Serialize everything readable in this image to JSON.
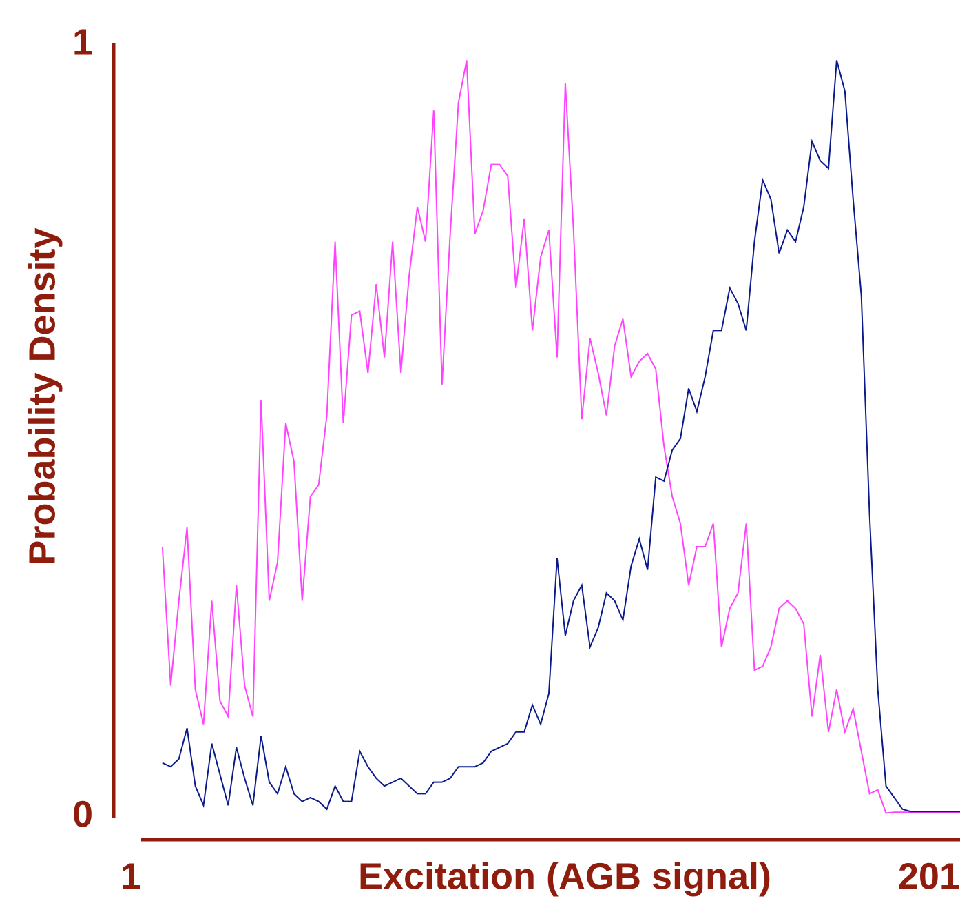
{
  "chart_data": {
    "type": "line",
    "xlabel": "Excitation (AGB signal)",
    "ylabel": "Probability Density",
    "xlim": [
      1,
      201
    ],
    "xticks": [
      1,
      201
    ],
    "ylim": [
      0,
      1
    ],
    "yticks": [
      0,
      1
    ],
    "grid": false,
    "x": [
      7,
      9,
      11,
      13,
      15,
      17,
      19,
      21,
      23,
      25,
      27,
      29,
      31,
      33,
      35,
      37,
      39,
      41,
      43,
      45,
      47,
      49,
      51,
      53,
      55,
      57,
      59,
      61,
      63,
      65,
      67,
      69,
      71,
      73,
      75,
      77,
      79,
      81,
      83,
      85,
      87,
      89,
      91,
      93,
      95,
      97,
      99,
      101,
      103,
      105,
      107,
      109,
      111,
      113,
      115,
      117,
      119,
      121,
      123,
      125,
      127,
      129,
      131,
      133,
      135,
      137,
      139,
      141,
      143,
      145,
      147,
      149,
      151,
      153,
      155,
      157,
      159,
      161,
      163,
      165,
      167,
      169,
      171,
      173,
      175,
      177,
      179,
      181,
      183,
      185,
      187,
      189,
      191,
      193,
      195,
      197,
      199,
      201
    ],
    "series": [
      {
        "color": "#ff44ff",
        "values": [
          0.35,
          0.17,
          0.28,
          0.375,
          0.165,
          0.12,
          0.28,
          0.15,
          0.13,
          0.3,
          0.17,
          0.13,
          0.54,
          0.28,
          0.33,
          0.51,
          0.46,
          0.28,
          0.415,
          0.43,
          0.52,
          0.745,
          0.51,
          0.65,
          0.655,
          0.575,
          0.69,
          0.595,
          0.745,
          0.575,
          0.7,
          0.79,
          0.745,
          0.915,
          0.56,
          0.755,
          0.925,
          0.98,
          0.755,
          0.785,
          0.845,
          0.845,
          0.83,
          0.685,
          0.775,
          0.63,
          0.725,
          0.76,
          0.595,
          0.95,
          0.76,
          0.515,
          0.62,
          0.575,
          0.52,
          0.61,
          0.645,
          0.57,
          0.59,
          0.6,
          0.58,
          0.48,
          0.415,
          0.38,
          0.3,
          0.35,
          0.35,
          0.38,
          0.22,
          0.27,
          0.29,
          0.38,
          0.19,
          0.195,
          0.22,
          0.27,
          0.28,
          0.27,
          0.25,
          0.13,
          0.21,
          0.11,
          0.165,
          0.11,
          0.14,
          0.085,
          0.03,
          0.035,
          0.005,
          0.006,
          0.006,
          0.006,
          0.006,
          0.006,
          0.006,
          0.006,
          0.006,
          0.006
        ]
      },
      {
        "color": "#0a1a8a",
        "values": [
          0.07,
          0.065,
          0.075,
          0.115,
          0.04,
          0.015,
          0.095,
          0.055,
          0.015,
          0.09,
          0.05,
          0.015,
          0.105,
          0.045,
          0.03,
          0.065,
          0.03,
          0.02,
          0.025,
          0.02,
          0.01,
          0.04,
          0.02,
          0.02,
          0.085,
          0.065,
          0.05,
          0.04,
          0.045,
          0.05,
          0.04,
          0.03,
          0.03,
          0.045,
          0.045,
          0.05,
          0.065,
          0.065,
          0.065,
          0.07,
          0.085,
          0.09,
          0.095,
          0.11,
          0.11,
          0.145,
          0.12,
          0.16,
          0.335,
          0.235,
          0.28,
          0.3,
          0.22,
          0.245,
          0.29,
          0.28,
          0.255,
          0.325,
          0.36,
          0.32,
          0.44,
          0.435,
          0.475,
          0.49,
          0.555,
          0.525,
          0.57,
          0.63,
          0.63,
          0.685,
          0.665,
          0.63,
          0.745,
          0.825,
          0.8,
          0.73,
          0.76,
          0.745,
          0.79,
          0.875,
          0.85,
          0.84,
          0.98,
          0.94,
          0.8,
          0.675,
          0.39,
          0.165,
          0.04,
          0.025,
          0.01,
          0.007,
          0.007,
          0.007,
          0.007,
          0.007,
          0.007,
          0.007
        ]
      }
    ]
  }
}
